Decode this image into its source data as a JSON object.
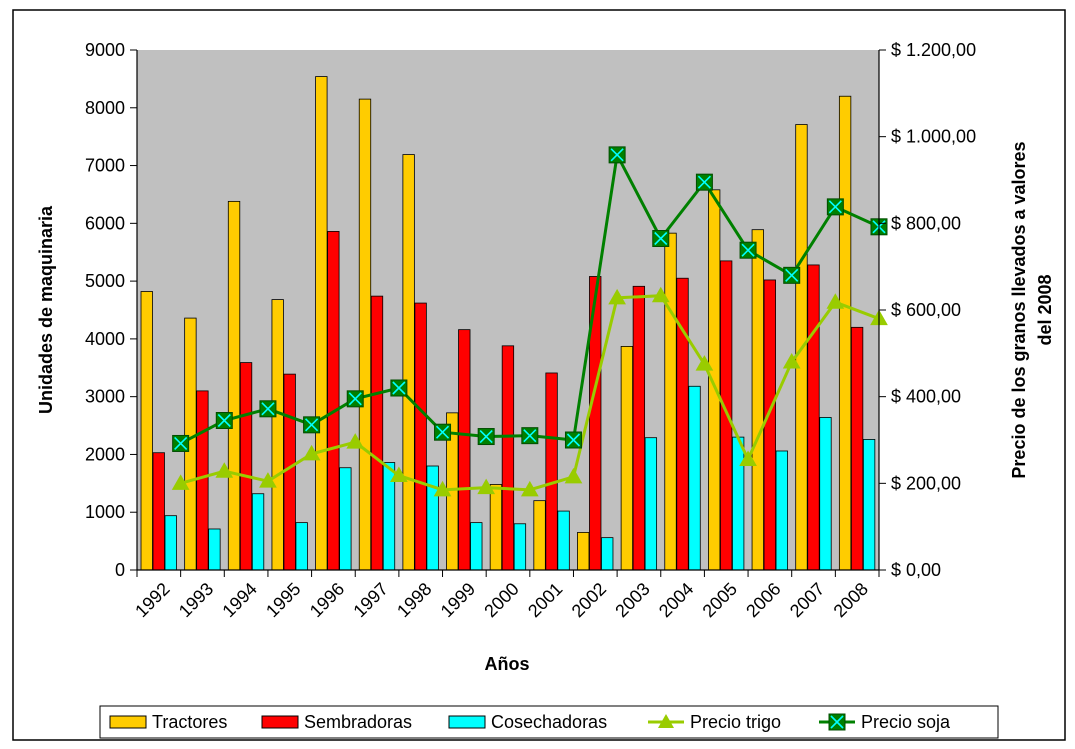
{
  "chart_data": {
    "type": "bar",
    "title": "",
    "xlabel": "Años",
    "ylabel": "Unidades de maquinaria",
    "y2label_line1": "Precio de los granos llevados a valores",
    "y2label_line2": "del 2008",
    "ylim": [
      0,
      9000
    ],
    "y2lim": [
      0,
      1200
    ],
    "y_ticks": [
      "0",
      "1000",
      "2000",
      "3000",
      "4000",
      "5000",
      "6000",
      "7000",
      "8000",
      "9000"
    ],
    "y2_ticks": [
      "$ 0,00",
      "$ 200,00",
      "$ 400,00",
      "$ 600,00",
      "$ 800,00",
      "$ 1.000,00",
      "$ 1.200,00"
    ],
    "categories": [
      "1992",
      "1993",
      "1994",
      "1995",
      "1996",
      "1997",
      "1998",
      "1999",
      "2000",
      "2001",
      "2002",
      "2003",
      "2004",
      "2005",
      "2006",
      "2007",
      "2008"
    ],
    "grid": false,
    "legend_position": "bottom",
    "plot_background": "#c0c0c0",
    "series": [
      {
        "name": "Tractores",
        "kind": "bar",
        "axis": "left",
        "color": "#ffcc00",
        "values": [
          4820,
          4360,
          6380,
          4680,
          8540,
          8150,
          7190,
          2720,
          1480,
          1200,
          650,
          3870,
          5830,
          6580,
          5890,
          7710,
          8200
        ]
      },
      {
        "name": "Sembradoras",
        "kind": "bar",
        "axis": "left",
        "color": "#ff0000",
        "values": [
          2030,
          3100,
          3590,
          3390,
          5860,
          4740,
          4620,
          4160,
          3880,
          3410,
          5080,
          4910,
          5050,
          5350,
          5020,
          5280,
          4200
        ]
      },
      {
        "name": "Cosechadoras",
        "kind": "bar",
        "axis": "left",
        "color": "#00ffff",
        "values": [
          940,
          710,
          1320,
          820,
          1770,
          1860,
          1800,
          820,
          800,
          1020,
          560,
          2290,
          3180,
          2300,
          2060,
          2640,
          2260
        ]
      },
      {
        "name": "Precio trigo",
        "kind": "line",
        "axis": "right",
        "color": "#99cc00",
        "marker": "triangle",
        "values": [
          200,
          228,
          205,
          268,
          295,
          218,
          185,
          190,
          185,
          215,
          628,
          633,
          475,
          255,
          480,
          618,
          580
        ]
      },
      {
        "name": "Precio soja",
        "kind": "line",
        "axis": "right",
        "color": "#008000",
        "marker": "x-square",
        "values": [
          292,
          345,
          372,
          335,
          395,
          420,
          318,
          308,
          310,
          300,
          958,
          765,
          895,
          738,
          680,
          838,
          792
        ]
      }
    ]
  }
}
